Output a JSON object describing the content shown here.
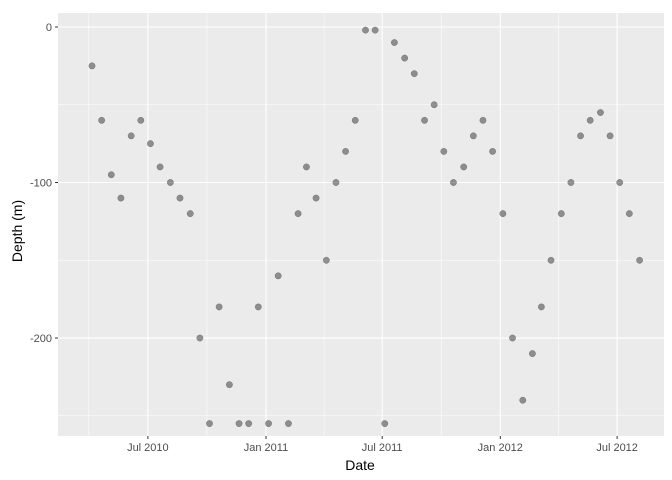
{
  "chart_data": {
    "type": "scatter",
    "title": "",
    "xlabel": "Date",
    "ylabel": "Depth (m)",
    "x_is_date": true,
    "xlim": [
      "2010-02-11",
      "2012-09-12"
    ],
    "ylim": [
      -263,
      9
    ],
    "x_ticks": [
      {
        "value": "2010-07-01",
        "label": "Jul 2010"
      },
      {
        "value": "2011-01-01",
        "label": "Jan 2011"
      },
      {
        "value": "2011-07-01",
        "label": "Jul 2011"
      },
      {
        "value": "2012-01-01",
        "label": "Jan 2012"
      },
      {
        "value": "2012-07-01",
        "label": "Jul 2012"
      }
    ],
    "y_ticks": [
      {
        "value": 0,
        "label": "0"
      },
      {
        "value": -100,
        "label": "-100"
      },
      {
        "value": -200,
        "label": "-200"
      }
    ],
    "grid": true,
    "legend": "none",
    "point_color": "#000000",
    "point_alpha": 0.4,
    "panel_background": "#ebebeb",
    "grid_color": "#ffffff",
    "approximate_series": [
      {
        "x": [
          "2010-04-05",
          "2010-04-20",
          "2010-05-05",
          "2010-05-20",
          "2010-06-05",
          "2010-06-20",
          "2010-07-05",
          "2010-07-20",
          "2010-08-05",
          "2010-08-20",
          "2010-09-05",
          "2010-09-20",
          "2010-10-05",
          "2010-10-20",
          "2010-11-05",
          "2010-11-20",
          "2010-12-05",
          "2010-12-20",
          "2011-01-05",
          "2011-01-20",
          "2011-02-05",
          "2011-02-20",
          "2011-03-05",
          "2011-03-20",
          "2011-04-05",
          "2011-04-20",
          "2011-05-05",
          "2011-05-20",
          "2011-06-05",
          "2011-06-20",
          "2011-07-05",
          "2011-07-20",
          "2011-08-05",
          "2011-08-20",
          "2011-09-05",
          "2011-09-20",
          "2011-10-05",
          "2011-10-20",
          "2011-11-05",
          "2011-11-20",
          "2011-12-05",
          "2011-12-20",
          "2012-01-05",
          "2012-01-20",
          "2012-02-05",
          "2012-02-20",
          "2012-03-05",
          "2012-03-20",
          "2012-04-05",
          "2012-04-20",
          "2012-05-05",
          "2012-05-20",
          "2012-06-05",
          "2012-06-20",
          "2012-07-05",
          "2012-07-20",
          "2012-08-05"
        ],
        "y": [
          -25,
          -60,
          -95,
          -110,
          -70,
          -60,
          -75,
          -90,
          -100,
          -110,
          -120,
          -200,
          -255,
          -180,
          -230,
          -255,
          -255,
          -180,
          -255,
          -160,
          -255,
          -120,
          -90,
          -110,
          -150,
          -100,
          -80,
          -60,
          -2,
          -2,
          -255,
          -10,
          -20,
          -30,
          -60,
          -50,
          -80,
          -100,
          -90,
          -70,
          -60,
          -80,
          -120,
          -200,
          -240,
          -210,
          -180,
          -150,
          -120,
          -100,
          -70,
          -60,
          -55,
          -70,
          -100,
          -120,
          -150
        ]
      }
    ]
  }
}
